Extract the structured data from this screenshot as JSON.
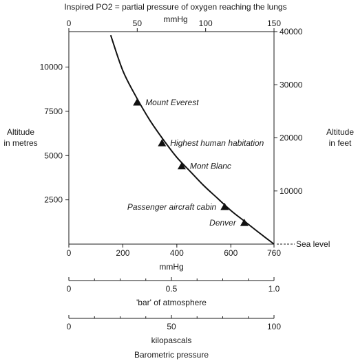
{
  "chart_data": {
    "type": "line",
    "title": "Inspired PO2 = partial pressure of oxygen reaching the lungs",
    "top_axis": {
      "unit": "mmHg",
      "range": [
        0,
        150
      ],
      "ticks": [
        "0",
        "50",
        "100",
        "150"
      ]
    },
    "bottom_axis": {
      "xlabel": "mmHg",
      "range": [
        0,
        760
      ],
      "ticks": [
        "0",
        "200",
        "400",
        "600",
        "760"
      ]
    },
    "left_axis": {
      "ylabel_line1": "Altitude",
      "ylabel_line2": "in metres",
      "range": [
        0,
        12000
      ],
      "ticks": [
        "2500",
        "5000",
        "7500",
        "10000"
      ]
    },
    "right_axis": {
      "ylabel_line1": "Altitude",
      "ylabel_line2": "in feet",
      "range": [
        0,
        40000
      ],
      "ticks": [
        "10000",
        "20000",
        "30000",
        "40000"
      ]
    },
    "sea_level_label": "Sea level",
    "bar_scale": {
      "label": "'bar' of atmosphere",
      "range": [
        0,
        1
      ],
      "ticks": [
        "0",
        "0.5",
        "1.0"
      ]
    },
    "kpa_scale": {
      "label": "kilopascals",
      "range": [
        0,
        100
      ],
      "ticks": [
        "0",
        "50",
        "100"
      ]
    },
    "footer_label": "Barometric pressure",
    "curve": {
      "x_mmHg": [
        760,
        700,
        650,
        600,
        550,
        500,
        450,
        400,
        350,
        300,
        250,
        200,
        155
      ],
      "y_metres": [
        0,
        700,
        1300,
        1900,
        2600,
        3300,
        4100,
        4900,
        5900,
        7000,
        8300,
        9800,
        11800
      ]
    },
    "landmarks": [
      {
        "name": "Mount Everest",
        "mmHg": 253,
        "metres": 8000,
        "label_side": "right"
      },
      {
        "name": "Highest human habitation",
        "mmHg": 345,
        "metres": 5700,
        "label_side": "right"
      },
      {
        "name": "Mont Blanc",
        "mmHg": 418,
        "metres": 4400,
        "label_side": "right"
      },
      {
        "name": "Passenger aircraft cabin",
        "mmHg": 577,
        "metres": 2100,
        "label_side": "left"
      },
      {
        "name": "Denver",
        "mmHg": 650,
        "metres": 1200,
        "label_side": "left"
      }
    ]
  }
}
